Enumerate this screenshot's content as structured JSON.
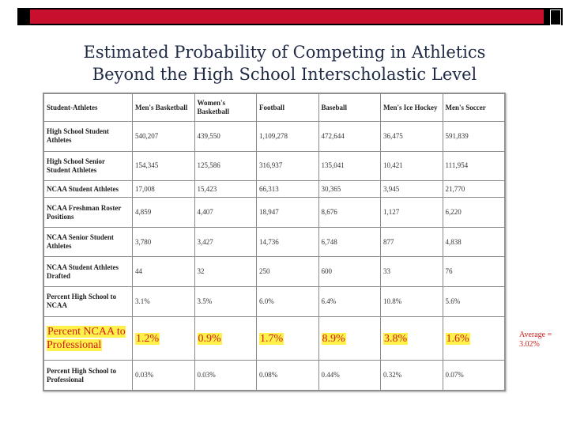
{
  "title_line1": "Estimated Probability of Competing in Athletics",
  "title_line2": "Beyond the High School Interscholastic Level",
  "table": {
    "headers": [
      "Student-Athletes",
      "Men's Basketball",
      "Women's Basketball",
      "Football",
      "Baseball",
      "Men's Ice Hockey",
      "Men's Soccer"
    ],
    "rows": [
      {
        "label": "High School Student Athletes",
        "values": [
          "540,207",
          "439,550",
          "1,109,278",
          "472,644",
          "36,475",
          "591,839"
        ]
      },
      {
        "label": "High School Senior Student Athletes",
        "values": [
          "154,345",
          "125,586",
          "316,937",
          "135,041",
          "10,421",
          "111,954"
        ]
      },
      {
        "label": "NCAA Student Athletes",
        "values": [
          "17,008",
          "15,423",
          "66,313",
          "30,365",
          "3,945",
          "21,770"
        ]
      },
      {
        "label": "NCAA Freshman Roster Positions",
        "values": [
          "4,859",
          "4,407",
          "18,947",
          "8,676",
          "1,127",
          "6,220"
        ]
      },
      {
        "label": "NCAA Senior Student Athletes",
        "values": [
          "3,780",
          "3,427",
          "14,736",
          "6,748",
          "877",
          "4,838"
        ]
      },
      {
        "label": "NCAA Student Athletes Drafted",
        "values": [
          "44",
          "32",
          "250",
          "600",
          "33",
          "76"
        ]
      },
      {
        "label": "Percent High School to NCAA",
        "values": [
          "3.1%",
          "3.5%",
          "6.0%",
          "6.4%",
          "10.8%",
          "5.6%"
        ]
      },
      {
        "label": "Percent NCAA to Professional",
        "values": [
          "1.2%",
          "0.9%",
          "1.7%",
          "8.9%",
          "3.8%",
          "1.6%"
        ]
      },
      {
        "label": "Percent High School to Professional",
        "values": [
          "0.03%",
          "0.03%",
          "0.08%",
          "0.44%",
          "0.32%",
          "0.07%"
        ]
      }
    ]
  },
  "average_note": "Average = 3.02%",
  "colors": {
    "accent_red": "#c8102e",
    "highlight_yellow": "#fff14a",
    "highlight_text": "#d11b1b",
    "title_text": "#1f2a44"
  }
}
